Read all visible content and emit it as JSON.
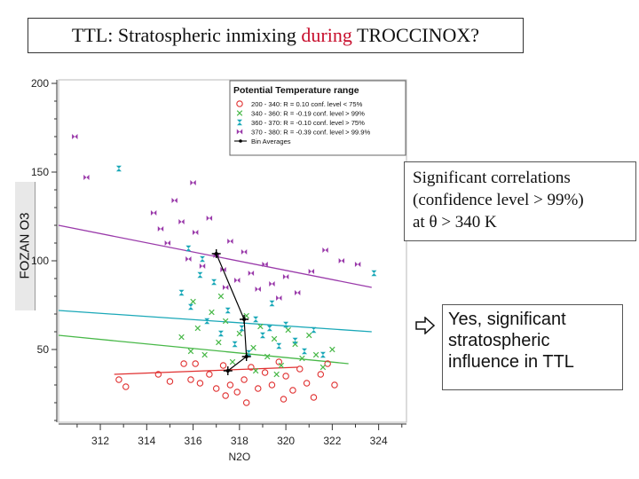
{
  "slide": {
    "title_a": "TTL:  Stratospheric inmixing ",
    "title_b": "during",
    "title_c": " TROCCINOX?",
    "ylabel": "FOZAN O3",
    "notes": [
      "Significant correlations",
      "(confidence level > 99%)",
      "at θ > 340 K"
    ],
    "conclusion": [
      "Yes, significant",
      "stratospheric",
      "influence in TTL"
    ],
    "arrow_icon": "right-arrow-icon"
  },
  "chart_data": {
    "type": "scatter",
    "xlabel": "N2O",
    "ylabel": "FOZAN O3",
    "xlim": [
      310.2,
      325.2
    ],
    "ylim": [
      9,
      202
    ],
    "xticks": [
      312,
      314,
      316,
      318,
      320,
      322,
      324
    ],
    "yticks": [
      50,
      100,
      150,
      200
    ],
    "grid": false,
    "legend": {
      "title": "Potential Temperature range",
      "placement": "top-right",
      "entries": [
        "200 - 340:  R = 0.10  conf. level < 75%",
        "340 - 360:  R = -0.19  conf. level  > 99%",
        "360 - 370:  R = -0.10  conf. level  > 75%",
        "370 - 380:  R = -0.39  conf. level  > 99.9%",
        "Bin Averages"
      ]
    },
    "series": [
      {
        "name": "200 - 340:  R = 0.10  conf. level < 75%",
        "marker": "circle",
        "color": "#e03030",
        "points": [
          [
            312.8,
            33
          ],
          [
            313.1,
            29
          ],
          [
            314.5,
            36
          ],
          [
            315.0,
            32
          ],
          [
            315.6,
            42
          ],
          [
            315.9,
            33
          ],
          [
            316.3,
            31
          ],
          [
            316.7,
            36
          ],
          [
            317.0,
            28
          ],
          [
            317.3,
            41
          ],
          [
            317.6,
            30
          ],
          [
            317.9,
            26
          ],
          [
            318.2,
            33
          ],
          [
            318.5,
            40
          ],
          [
            318.8,
            28
          ],
          [
            319.1,
            37
          ],
          [
            319.4,
            30
          ],
          [
            319.7,
            43
          ],
          [
            320.0,
            35
          ],
          [
            320.3,
            27
          ],
          [
            320.6,
            39
          ],
          [
            320.9,
            31
          ],
          [
            321.2,
            23
          ],
          [
            321.5,
            36
          ],
          [
            321.8,
            42
          ],
          [
            322.1,
            30
          ],
          [
            316.1,
            42
          ],
          [
            318.3,
            20
          ],
          [
            319.9,
            22
          ],
          [
            317.4,
            24
          ]
        ],
        "fit": [
          [
            312.6,
            36
          ],
          [
            320.5,
            40
          ]
        ]
      },
      {
        "name": "340 - 360:  R = -0.19  conf. level  > 99%",
        "marker": "x",
        "color": "#48b848",
        "points": [
          [
            315.5,
            57
          ],
          [
            315.9,
            49
          ],
          [
            316.2,
            62
          ],
          [
            316.5,
            47
          ],
          [
            316.8,
            71
          ],
          [
            317.1,
            54
          ],
          [
            317.4,
            66
          ],
          [
            317.7,
            43
          ],
          [
            318.0,
            59
          ],
          [
            318.3,
            69
          ],
          [
            318.6,
            51
          ],
          [
            318.9,
            63
          ],
          [
            319.2,
            46
          ],
          [
            319.5,
            56
          ],
          [
            319.8,
            41
          ],
          [
            320.1,
            61
          ],
          [
            320.4,
            53
          ],
          [
            320.7,
            45
          ],
          [
            321.0,
            58
          ],
          [
            321.3,
            47
          ],
          [
            321.6,
            40
          ],
          [
            322.0,
            50
          ],
          [
            316.0,
            77
          ],
          [
            317.2,
            80
          ],
          [
            318.7,
            38
          ],
          [
            319.6,
            36
          ]
        ],
        "fit": [
          [
            310.2,
            58
          ],
          [
            322.7,
            42
          ]
        ]
      },
      {
        "name": "360 - 370:  R = -0.10  conf. level  > 75%",
        "marker": "hourglass",
        "color": "#1aa8b8",
        "points": [
          [
            312.8,
            152
          ],
          [
            315.5,
            82
          ],
          [
            315.9,
            74
          ],
          [
            316.3,
            92
          ],
          [
            316.6,
            66
          ],
          [
            316.9,
            88
          ],
          [
            317.2,
            59
          ],
          [
            317.5,
            72
          ],
          [
            317.8,
            53
          ],
          [
            318.1,
            62
          ],
          [
            318.4,
            48
          ],
          [
            318.7,
            67
          ],
          [
            319.0,
            58
          ],
          [
            319.4,
            76
          ],
          [
            319.7,
            52
          ],
          [
            320.0,
            64
          ],
          [
            320.4,
            55
          ],
          [
            320.8,
            49
          ],
          [
            321.2,
            61
          ],
          [
            321.6,
            47
          ],
          [
            323.8,
            93
          ],
          [
            319.3,
            62
          ],
          [
            316.4,
            101
          ],
          [
            315.8,
            107
          ]
        ],
        "fit": [
          [
            310.2,
            72
          ],
          [
            323.7,
            60
          ]
        ]
      },
      {
        "name": "370 - 380:  R = -0.39  conf. level  > 99.9%",
        "marker": "bowtie",
        "color": "#9a3aaa",
        "points": [
          [
            310.9,
            170
          ],
          [
            311.4,
            147
          ],
          [
            314.3,
            127
          ],
          [
            314.6,
            118
          ],
          [
            314.9,
            110
          ],
          [
            315.2,
            134
          ],
          [
            315.5,
            122
          ],
          [
            315.8,
            101
          ],
          [
            316.1,
            116
          ],
          [
            316.4,
            97
          ],
          [
            316.7,
            124
          ],
          [
            317.0,
            103
          ],
          [
            317.3,
            95
          ],
          [
            317.6,
            111
          ],
          [
            317.9,
            89
          ],
          [
            318.2,
            105
          ],
          [
            318.5,
            93
          ],
          [
            318.8,
            84
          ],
          [
            319.1,
            98
          ],
          [
            319.4,
            87
          ],
          [
            319.7,
            79
          ],
          [
            320.0,
            91
          ],
          [
            320.5,
            82
          ],
          [
            321.1,
            94
          ],
          [
            321.7,
            106
          ],
          [
            322.4,
            100
          ],
          [
            323.1,
            98
          ],
          [
            316.0,
            144
          ],
          [
            317.4,
            85
          ]
        ],
        "fit": [
          [
            310.2,
            120
          ],
          [
            323.7,
            85
          ]
        ]
      },
      {
        "name": "Bin Averages",
        "marker": "cross-line",
        "color": "#000000",
        "points": [
          [
            317.0,
            104
          ],
          [
            318.2,
            67
          ],
          [
            318.3,
            46
          ],
          [
            317.5,
            38
          ]
        ]
      }
    ]
  }
}
